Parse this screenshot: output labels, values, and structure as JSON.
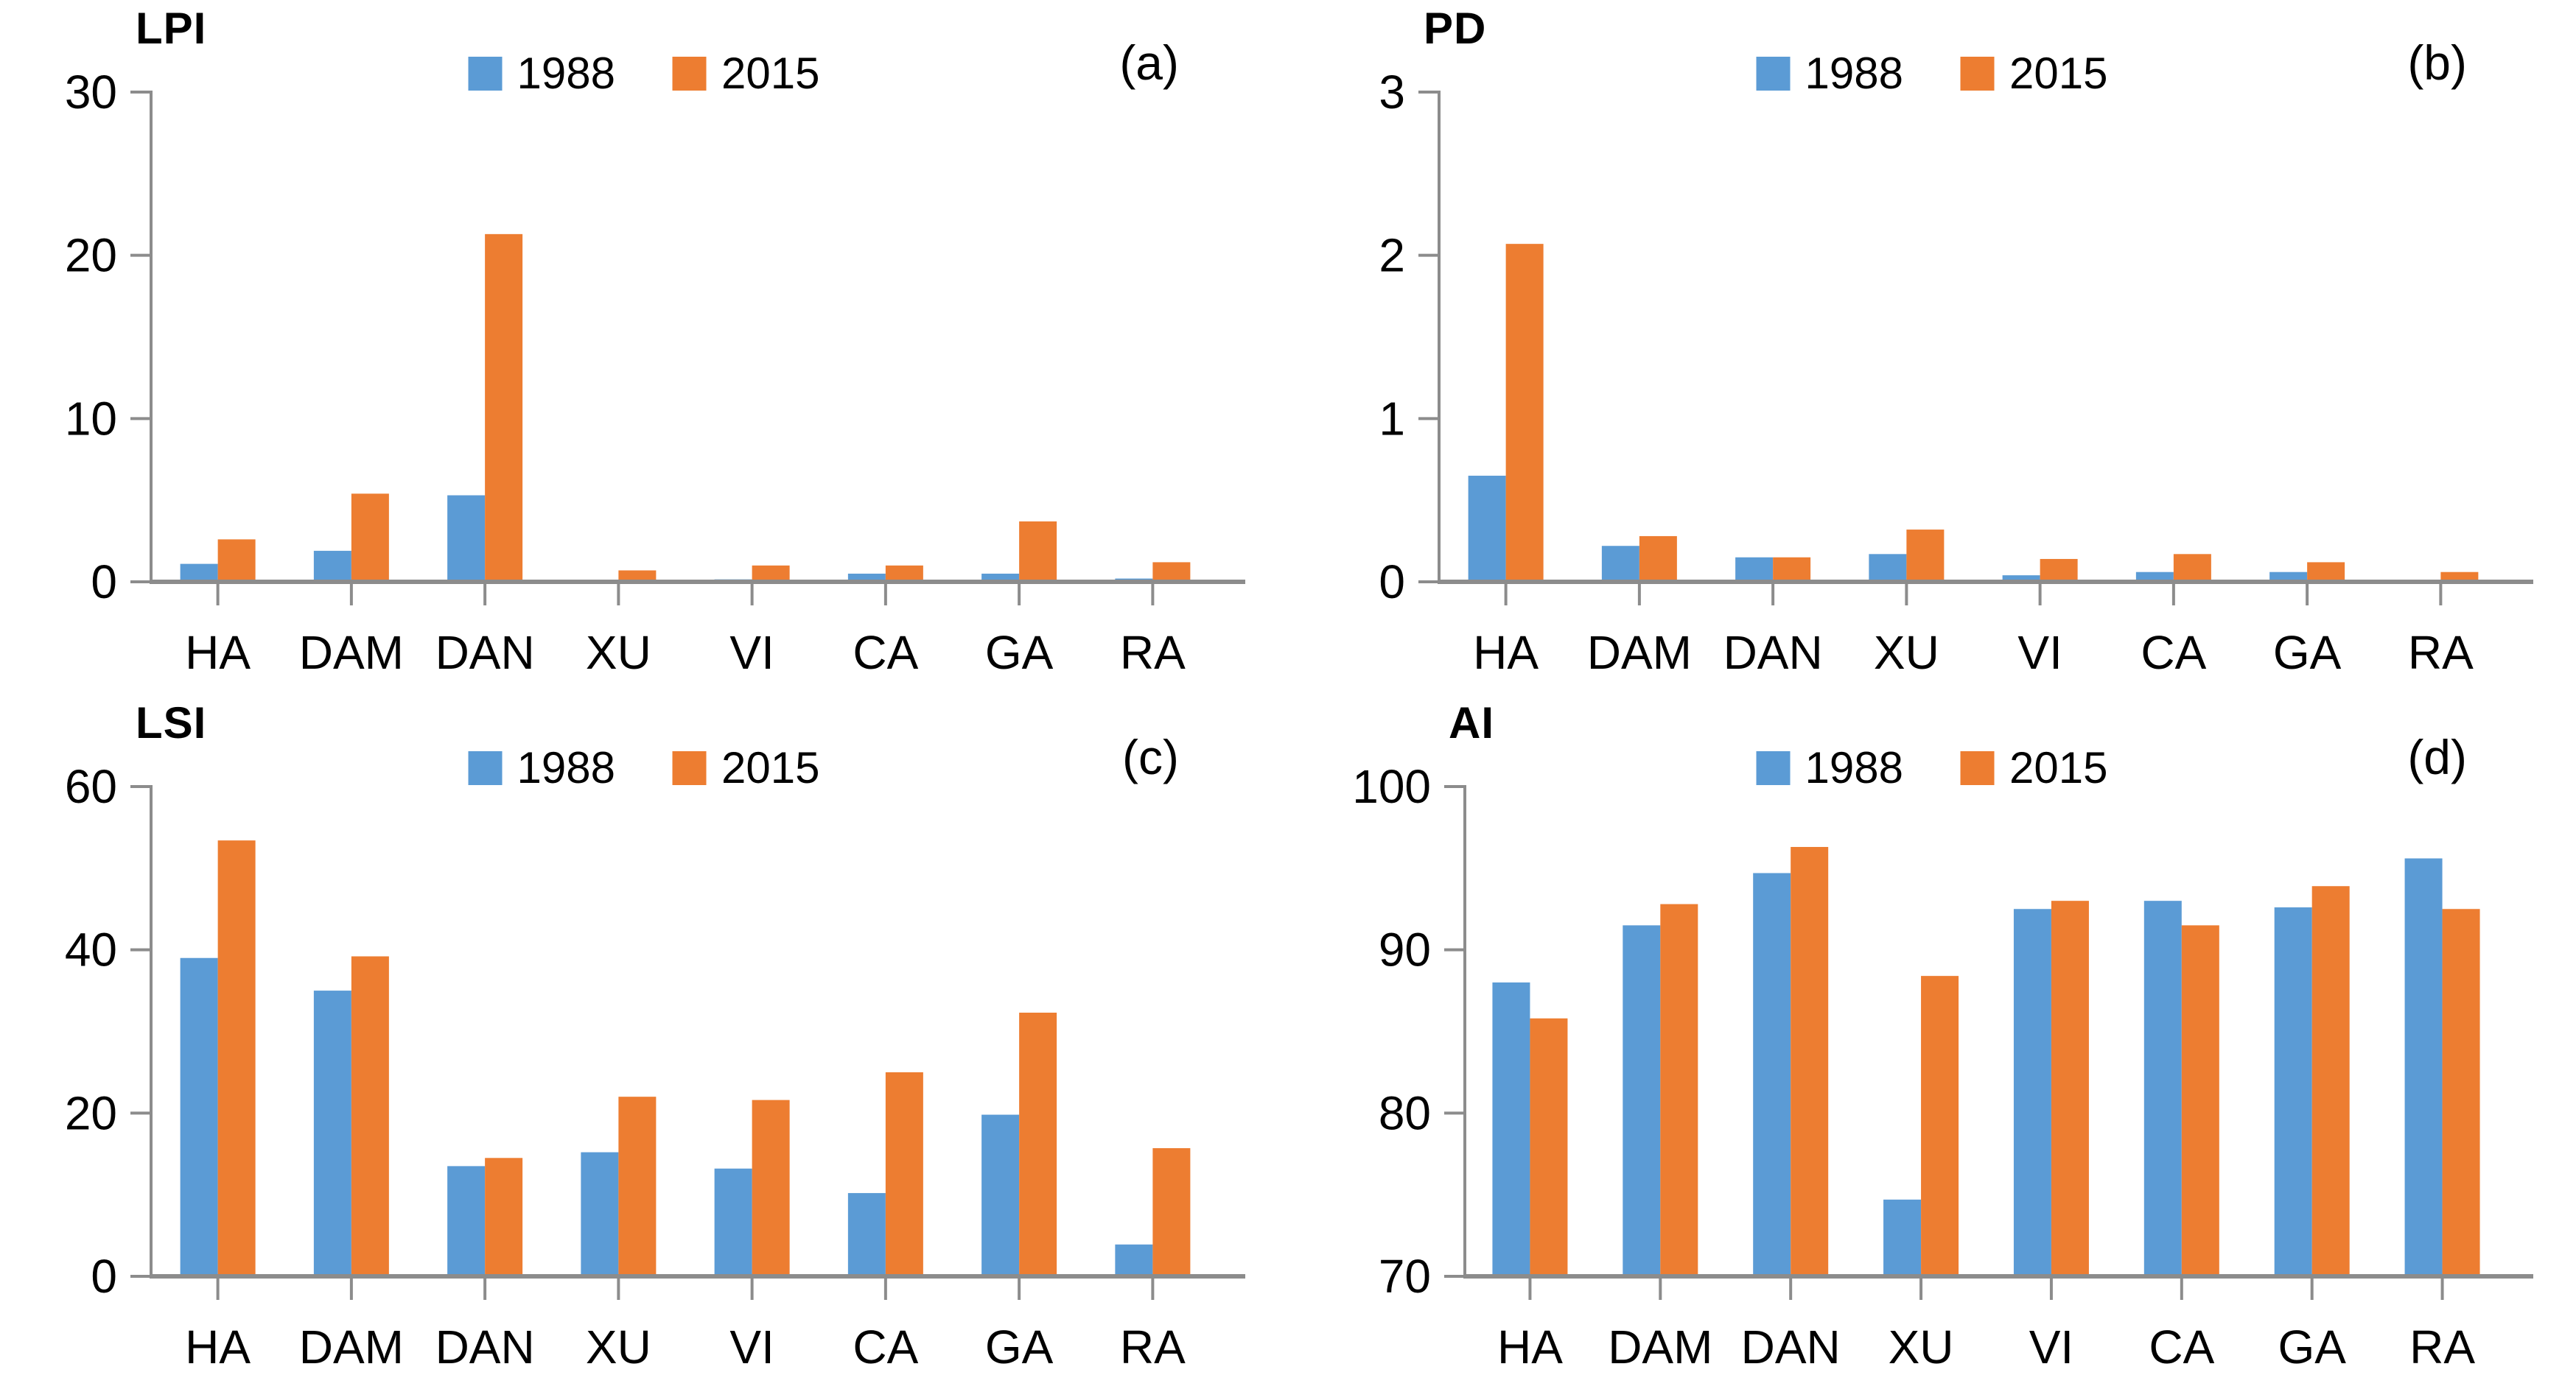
{
  "page": {
    "background": "#ffffff",
    "description": "Four bar chart panels comparing landscape metrics in 1988 vs 2015 across eight districts"
  },
  "colors": {
    "series_1988": "#5B9BD5",
    "series_2015": "#ED7D31",
    "axis": "#8C8C8C",
    "text": "#000000"
  },
  "chart_data": [
    {
      "type": "bar",
      "title": "LPI",
      "panel_label": "(a)",
      "categories": [
        "HA",
        "DAM",
        "DAN",
        "XU",
        "VI",
        "CA",
        "GA",
        "RA"
      ],
      "series": [
        {
          "name": "1988",
          "color": "#5B9BD5",
          "values": [
            1.1,
            1.9,
            5.3,
            0.05,
            0.15,
            0.5,
            0.5,
            0.2
          ]
        },
        {
          "name": "2015",
          "color": "#ED7D31",
          "values": [
            2.6,
            5.4,
            21.3,
            0.7,
            1.0,
            1.0,
            3.7,
            1.2
          ]
        }
      ],
      "xlabel": "",
      "ylabel": "",
      "ylim": [
        0,
        30
      ],
      "yticks": [
        0,
        10,
        20,
        30
      ],
      "grid": false,
      "legend_position": "top-center"
    },
    {
      "type": "bar",
      "title": "PD",
      "panel_label": "(b)",
      "categories": [
        "HA",
        "DAM",
        "DAN",
        "XU",
        "VI",
        "CA",
        "GA",
        "RA"
      ],
      "series": [
        {
          "name": "1988",
          "color": "#5B9BD5",
          "values": [
            0.65,
            0.22,
            0.15,
            0.17,
            0.04,
            0.06,
            0.06,
            0.01
          ]
        },
        {
          "name": "2015",
          "color": "#ED7D31",
          "values": [
            2.07,
            0.28,
            0.15,
            0.32,
            0.14,
            0.17,
            0.12,
            0.06
          ]
        }
      ],
      "xlabel": "",
      "ylabel": "",
      "ylim": [
        0,
        3
      ],
      "yticks": [
        0,
        1,
        2,
        3
      ],
      "grid": false,
      "legend_position": "top-center"
    },
    {
      "type": "bar",
      "title": "LSI",
      "panel_label": "(c)",
      "categories": [
        "HA",
        "DAM",
        "DAN",
        "XU",
        "VI",
        "CA",
        "GA",
        "RA"
      ],
      "series": [
        {
          "name": "1988",
          "color": "#5B9BD5",
          "values": [
            39.0,
            35.0,
            13.5,
            15.2,
            13.2,
            10.2,
            19.8,
            3.9
          ]
        },
        {
          "name": "2015",
          "color": "#ED7D31",
          "values": [
            53.4,
            39.2,
            14.5,
            22.0,
            21.6,
            25.0,
            32.3,
            15.7
          ]
        }
      ],
      "xlabel": "",
      "ylabel": "",
      "ylim": [
        0,
        60
      ],
      "yticks": [
        0,
        20,
        40,
        60
      ],
      "grid": false,
      "legend_position": "top-center"
    },
    {
      "type": "bar",
      "title": "AI",
      "panel_label": "(d)",
      "categories": [
        "HA",
        "DAM",
        "DAN",
        "XU",
        "VI",
        "CA",
        "GA",
        "RA"
      ],
      "series": [
        {
          "name": "1988",
          "color": "#5B9BD5",
          "values": [
            88.0,
            91.5,
            94.7,
            74.7,
            92.5,
            93.0,
            92.6,
            95.6
          ]
        },
        {
          "name": "2015",
          "color": "#ED7D31",
          "values": [
            85.8,
            92.8,
            96.3,
            88.4,
            93.0,
            91.5,
            93.9,
            92.5
          ]
        }
      ],
      "xlabel": "",
      "ylabel": "",
      "ylim": [
        70,
        100
      ],
      "yticks": [
        70,
        80,
        90,
        100
      ],
      "grid": false,
      "legend_position": "top-center"
    }
  ]
}
